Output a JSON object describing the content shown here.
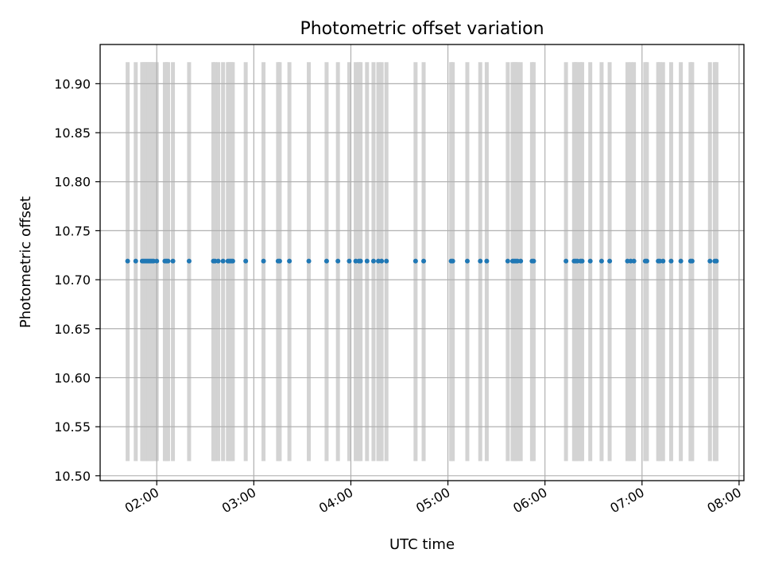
{
  "chart_data": {
    "type": "scatter",
    "title": "Photometric offset variation",
    "xlabel": "UTC time",
    "ylabel": "Photometric offset",
    "xlim": [
      "01:25",
      "08:03"
    ],
    "ylim": [
      10.495,
      10.94
    ],
    "x_ticks": [
      "02:00",
      "03:00",
      "04:00",
      "05:00",
      "06:00",
      "07:00",
      "08:00"
    ],
    "y_ticks": [
      "10.50",
      "10.55",
      "10.60",
      "10.65",
      "10.70",
      "10.75",
      "10.80",
      "10.85",
      "10.90"
    ],
    "grid": true,
    "marker_color": "#1f77b4",
    "band_color": "#d3d3d3",
    "error_band": {
      "low": 10.515,
      "high": 10.922
    },
    "series": [
      {
        "y_value": 10.719,
        "x": [
          "01:42",
          "01:47",
          "01:51",
          "01:52",
          "01:53",
          "01:54",
          "01:55",
          "01:56",
          "01:57",
          "01:58",
          "02:00",
          "02:05",
          "02:06",
          "02:07",
          "02:10",
          "02:20",
          "02:35",
          "02:36",
          "02:38",
          "02:41",
          "02:44",
          "02:45",
          "02:46",
          "02:47",
          "02:55",
          "03:06",
          "03:15",
          "03:16",
          "03:22",
          "03:34",
          "03:45",
          "03:52",
          "03:59",
          "04:03",
          "04:05",
          "04:06",
          "04:10",
          "04:14",
          "04:17",
          "04:19",
          "04:22",
          "04:40",
          "04:45",
          "05:02",
          "05:03",
          "05:12",
          "05:20",
          "05:24",
          "05:37",
          "05:40",
          "05:41",
          "05:42",
          "05:43",
          "05:45",
          "05:52",
          "05:53",
          "06:13",
          "06:18",
          "06:19",
          "06:20",
          "06:22",
          "06:23",
          "06:28",
          "06:35",
          "06:40",
          "06:51",
          "06:53",
          "06:55",
          "07:02",
          "07:03",
          "07:10",
          "07:11",
          "07:13",
          "07:18",
          "07:24",
          "07:30",
          "07:31",
          "07:42",
          "07:45",
          "07:46"
        ]
      }
    ]
  }
}
